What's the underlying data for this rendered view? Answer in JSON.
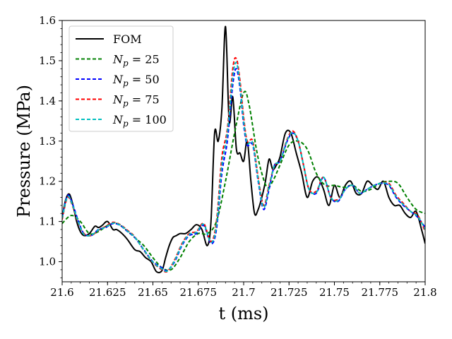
{
  "chart_data": {
    "type": "line",
    "xlabel": "t (ms)",
    "ylabel": "Pressure (MPa)",
    "xlim": [
      21.6,
      21.8
    ],
    "ylim": [
      0.95,
      1.6
    ],
    "xticks": [
      "21.6",
      "21.625",
      "21.65",
      "21.675",
      "21.7",
      "21.725",
      "21.75",
      "21.775",
      "21.8"
    ],
    "yticks": [
      "1.0",
      "1.1",
      "1.2",
      "1.3",
      "1.4",
      "1.5",
      "1.6"
    ],
    "grid": false,
    "legend_position": "top-left",
    "series": [
      {
        "name": "FOM",
        "legend_prefix": "FOM",
        "legend_sub": "",
        "legend_suffix": "",
        "color": "#000000",
        "dash": "solid",
        "x": [
          21.6,
          21.602,
          21.604,
          21.606,
          21.608,
          21.61,
          21.612,
          21.615,
          21.618,
          21.62,
          21.622,
          21.625,
          21.628,
          21.63,
          21.633,
          21.636,
          21.64,
          21.643,
          21.646,
          21.649,
          21.652,
          21.655,
          21.657,
          21.659,
          21.661,
          21.663,
          21.665,
          21.668,
          21.671,
          21.674,
          21.677,
          21.68,
          21.682,
          21.684,
          21.686,
          21.688,
          21.69,
          21.692,
          21.694,
          21.696,
          21.698,
          21.7,
          21.702,
          21.704,
          21.706,
          21.708,
          21.71,
          21.712,
          21.714,
          21.716,
          21.718,
          21.72,
          21.723,
          21.726,
          21.729,
          21.732,
          21.735,
          21.738,
          21.741,
          21.744,
          21.747,
          21.75,
          21.753,
          21.756,
          21.759,
          21.762,
          21.765,
          21.768,
          21.771,
          21.774,
          21.777,
          21.78,
          21.783,
          21.786,
          21.789,
          21.792,
          21.795,
          21.798,
          21.8
        ],
        "y": [
          1.11,
          1.155,
          1.168,
          1.14,
          1.1,
          1.075,
          1.065,
          1.07,
          1.088,
          1.085,
          1.09,
          1.1,
          1.08,
          1.08,
          1.07,
          1.055,
          1.03,
          1.025,
          1.01,
          1.0,
          0.975,
          0.978,
          1.01,
          1.04,
          1.06,
          1.065,
          1.07,
          1.07,
          1.08,
          1.092,
          1.08,
          1.04,
          1.1,
          1.32,
          1.3,
          1.38,
          1.585,
          1.35,
          1.41,
          1.28,
          1.27,
          1.25,
          1.3,
          1.2,
          1.12,
          1.13,
          1.16,
          1.2,
          1.255,
          1.23,
          1.24,
          1.26,
          1.32,
          1.32,
          1.27,
          1.22,
          1.16,
          1.2,
          1.21,
          1.18,
          1.14,
          1.19,
          1.16,
          1.19,
          1.2,
          1.17,
          1.17,
          1.2,
          1.19,
          1.18,
          1.2,
          1.16,
          1.14,
          1.14,
          1.12,
          1.11,
          1.125,
          1.08,
          1.045
        ]
      },
      {
        "name": "N_p = 25",
        "legend_prefix": "N",
        "legend_sub": "p",
        "legend_suffix": " = 25",
        "color": "#008000",
        "dash": "dashed",
        "x": [
          21.6,
          21.605,
          21.61,
          21.615,
          21.62,
          21.625,
          21.63,
          21.635,
          21.64,
          21.645,
          21.65,
          21.655,
          21.66,
          21.665,
          21.67,
          21.675,
          21.68,
          21.685,
          21.69,
          21.695,
          21.7,
          21.703,
          21.707,
          21.71,
          21.713,
          21.716,
          21.72,
          21.725,
          21.73,
          21.735,
          21.74,
          21.745,
          21.75,
          21.755,
          21.76,
          21.765,
          21.77,
          21.775,
          21.78,
          21.785,
          21.79,
          21.795,
          21.8
        ],
        "y": [
          1.095,
          1.115,
          1.1,
          1.07,
          1.075,
          1.09,
          1.095,
          1.08,
          1.06,
          1.04,
          1.01,
          0.985,
          0.98,
          1.01,
          1.05,
          1.07,
          1.07,
          1.1,
          1.2,
          1.32,
          1.42,
          1.39,
          1.28,
          1.22,
          1.185,
          1.2,
          1.24,
          1.29,
          1.3,
          1.28,
          1.22,
          1.19,
          1.19,
          1.185,
          1.19,
          1.175,
          1.18,
          1.195,
          1.2,
          1.195,
          1.16,
          1.13,
          1.12
        ]
      },
      {
        "name": "N_p = 50",
        "legend_prefix": "N",
        "legend_sub": "p",
        "legend_suffix": " = 50",
        "color": "#0000ff",
        "dash": "dashed",
        "x": [
          21.6,
          21.603,
          21.606,
          21.609,
          21.612,
          21.616,
          21.62,
          21.624,
          21.628,
          21.632,
          21.636,
          21.64,
          21.645,
          21.65,
          21.655,
          21.658,
          21.662,
          21.666,
          21.67,
          21.674,
          21.678,
          21.682,
          21.685,
          21.688,
          21.691,
          21.694,
          21.696,
          21.698,
          21.7,
          21.702,
          21.705,
          21.708,
          21.711,
          21.714,
          21.717,
          21.72,
          21.724,
          21.727,
          21.73,
          21.733,
          21.736,
          21.74,
          21.744,
          21.748,
          21.752,
          21.756,
          21.76,
          21.764,
          21.768,
          21.772,
          21.776,
          21.78,
          21.784,
          21.788,
          21.792,
          21.796,
          21.8
        ],
        "y": [
          1.11,
          1.165,
          1.14,
          1.1,
          1.07,
          1.065,
          1.08,
          1.085,
          1.095,
          1.09,
          1.075,
          1.06,
          1.03,
          1.0,
          0.985,
          0.978,
          1.0,
          1.04,
          1.065,
          1.07,
          1.09,
          1.045,
          1.08,
          1.22,
          1.3,
          1.44,
          1.48,
          1.43,
          1.34,
          1.29,
          1.29,
          1.2,
          1.13,
          1.18,
          1.24,
          1.25,
          1.3,
          1.32,
          1.3,
          1.24,
          1.18,
          1.17,
          1.21,
          1.16,
          1.15,
          1.18,
          1.19,
          1.17,
          1.18,
          1.19,
          1.195,
          1.19,
          1.16,
          1.14,
          1.125,
          1.11,
          1.085
        ]
      },
      {
        "name": "N_p = 75",
        "legend_prefix": "N",
        "legend_sub": "p",
        "legend_suffix": " = 75",
        "color": "#ff0000",
        "dash": "dashed",
        "x": [
          21.6,
          21.603,
          21.606,
          21.609,
          21.612,
          21.616,
          21.62,
          21.624,
          21.628,
          21.632,
          21.636,
          21.64,
          21.645,
          21.65,
          21.655,
          21.658,
          21.662,
          21.666,
          21.67,
          21.674,
          21.678,
          21.682,
          21.685,
          21.688,
          21.691,
          21.694,
          21.696,
          21.698,
          21.7,
          21.702,
          21.705,
          21.708,
          21.711,
          21.714,
          21.717,
          21.72,
          21.724,
          21.727,
          21.73,
          21.733,
          21.736,
          21.74,
          21.744,
          21.748,
          21.752,
          21.756,
          21.76,
          21.764,
          21.768,
          21.772,
          21.776,
          21.78,
          21.784,
          21.788,
          21.792,
          21.796,
          21.8
        ],
        "y": [
          1.105,
          1.16,
          1.135,
          1.095,
          1.07,
          1.065,
          1.078,
          1.088,
          1.098,
          1.092,
          1.078,
          1.062,
          1.028,
          0.998,
          0.98,
          0.976,
          1.005,
          1.045,
          1.07,
          1.075,
          1.095,
          1.05,
          1.1,
          1.26,
          1.33,
          1.48,
          1.505,
          1.45,
          1.36,
          1.3,
          1.3,
          1.21,
          1.14,
          1.19,
          1.24,
          1.25,
          1.305,
          1.325,
          1.3,
          1.24,
          1.18,
          1.175,
          1.21,
          1.16,
          1.155,
          1.18,
          1.19,
          1.17,
          1.18,
          1.19,
          1.195,
          1.195,
          1.165,
          1.145,
          1.125,
          1.115,
          1.075
        ]
      },
      {
        "name": "N_p = 100",
        "legend_prefix": "N",
        "legend_sub": "p",
        "legend_suffix": " = 100",
        "color": "#00bfbf",
        "dash": "dashed",
        "x": [
          21.6,
          21.603,
          21.606,
          21.609,
          21.612,
          21.616,
          21.62,
          21.624,
          21.628,
          21.632,
          21.636,
          21.64,
          21.645,
          21.65,
          21.655,
          21.658,
          21.662,
          21.666,
          21.67,
          21.674,
          21.678,
          21.682,
          21.685,
          21.688,
          21.691,
          21.694,
          21.696,
          21.698,
          21.7,
          21.702,
          21.705,
          21.708,
          21.711,
          21.714,
          21.717,
          21.72,
          21.724,
          21.727,
          21.73,
          21.733,
          21.736,
          21.74,
          21.744,
          21.748,
          21.752,
          21.756,
          21.76,
          21.764,
          21.768,
          21.772,
          21.776,
          21.78,
          21.784,
          21.788,
          21.792,
          21.796,
          21.8
        ],
        "y": [
          1.108,
          1.162,
          1.137,
          1.097,
          1.068,
          1.066,
          1.079,
          1.086,
          1.096,
          1.091,
          1.076,
          1.061,
          1.029,
          0.999,
          0.982,
          0.977,
          1.003,
          1.043,
          1.068,
          1.073,
          1.093,
          1.048,
          1.09,
          1.24,
          1.32,
          1.46,
          1.495,
          1.44,
          1.35,
          1.295,
          1.295,
          1.205,
          1.135,
          1.185,
          1.24,
          1.25,
          1.302,
          1.322,
          1.3,
          1.24,
          1.18,
          1.172,
          1.21,
          1.16,
          1.152,
          1.18,
          1.19,
          1.17,
          1.18,
          1.19,
          1.195,
          1.192,
          1.162,
          1.142,
          1.125,
          1.112,
          1.08
        ]
      }
    ]
  }
}
